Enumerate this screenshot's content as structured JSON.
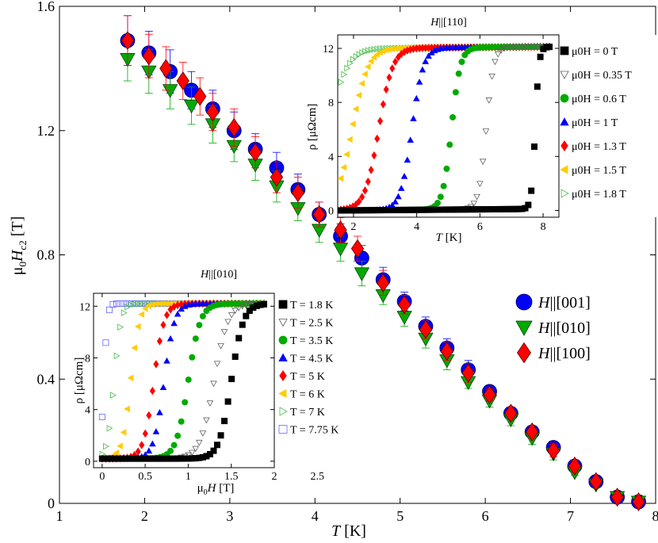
{
  "chart_data": [
    {
      "type": "scatter",
      "xlabel_var": "T",
      "xlabel_unit": "[K]",
      "ylabel_mu": "μ",
      "ylabel_mu_sub": "0",
      "ylabel_var": "H",
      "ylabel_var_sub": "c2",
      "ylabel_unit": "[T]",
      "xlim": [
        1,
        8
      ],
      "ylim": [
        0,
        1.6
      ],
      "xticks": [
        1,
        2,
        3,
        4,
        5,
        6,
        7,
        8
      ],
      "yticks": [
        0,
        0.4,
        0.8,
        1.2,
        1.6
      ],
      "ytick_labels": [
        "0",
        "0.4",
        "0.8",
        "1.2",
        "1.6"
      ],
      "legend_position": "right",
      "series": [
        {
          "name": "H||[001]",
          "marker": "circle",
          "color": "#0000ff",
          "x": [
            1.8,
            2.05,
            2.3,
            2.55,
            2.8,
            3.05,
            3.3,
            3.55,
            3.8,
            4.05,
            4.3,
            4.55,
            4.8,
            5.05,
            5.3,
            5.55,
            5.8,
            6.05,
            6.3,
            6.55,
            6.8,
            7.05,
            7.3,
            7.55,
            7.8
          ],
          "y": [
            1.49,
            1.45,
            1.39,
            1.33,
            1.27,
            1.2,
            1.14,
            1.08,
            1.01,
            0.93,
            0.86,
            0.79,
            0.72,
            0.65,
            0.57,
            0.5,
            0.43,
            0.36,
            0.29,
            0.23,
            0.18,
            0.12,
            0.07,
            0.02,
            0.005
          ],
          "err": [
            0.08,
            0.07,
            0.07,
            0.06,
            0.06,
            0.06,
            0.05,
            0.05,
            0.05,
            0.04,
            0.04,
            0.04,
            0.04,
            0.03,
            0.03,
            0.03,
            0.03,
            0.02,
            0.02,
            0.02,
            0.02,
            0.02,
            0.01,
            0.01,
            0.01
          ]
        },
        {
          "name": "H||[010]",
          "marker": "triangle-down",
          "color": "#00aa00",
          "x": [
            1.8,
            2.05,
            2.3,
            2.55,
            2.8,
            3.05,
            3.3,
            3.55,
            3.8,
            4.05,
            4.3,
            4.55,
            4.8,
            5.05,
            5.3,
            5.55,
            5.8,
            6.05,
            6.3,
            6.55,
            6.8,
            7.05,
            7.3,
            7.55,
            7.8
          ],
          "y": [
            1.43,
            1.39,
            1.33,
            1.28,
            1.22,
            1.15,
            1.09,
            1.02,
            0.95,
            0.88,
            0.82,
            0.74,
            0.67,
            0.6,
            0.53,
            0.46,
            0.39,
            0.33,
            0.27,
            0.21,
            0.16,
            0.1,
            0.06,
            0.02,
            0.005
          ],
          "err": [
            0.07,
            0.07,
            0.06,
            0.06,
            0.06,
            0.05,
            0.05,
            0.05,
            0.04,
            0.04,
            0.04,
            0.04,
            0.03,
            0.03,
            0.03,
            0.03,
            0.02,
            0.02,
            0.02,
            0.02,
            0.02,
            0.01,
            0.01,
            0.01,
            0.01
          ]
        },
        {
          "name": "H||[100]",
          "marker": "diamond",
          "color": "#ff0000",
          "x": [
            1.8,
            2.05,
            2.25,
            2.45,
            2.65,
            2.8,
            3.05,
            3.3,
            3.55,
            3.8,
            4.05,
            4.3,
            4.5,
            4.8,
            5.05,
            5.3,
            5.55,
            5.8,
            6.05,
            6.3,
            6.55,
            6.8,
            7.05,
            7.3,
            7.55,
            7.8
          ],
          "y": [
            1.49,
            1.44,
            1.4,
            1.36,
            1.31,
            1.26,
            1.21,
            1.13,
            1.05,
            1.0,
            0.93,
            0.88,
            0.82,
            0.71,
            0.64,
            0.56,
            0.49,
            0.42,
            0.35,
            0.29,
            0.23,
            0.17,
            0.12,
            0.07,
            0.02,
            0.005
          ],
          "err": [
            0.08,
            0.07,
            0.07,
            0.06,
            0.06,
            0.06,
            0.06,
            0.05,
            0.05,
            0.05,
            0.04,
            0.04,
            0.04,
            0.04,
            0.03,
            0.03,
            0.03,
            0.03,
            0.02,
            0.02,
            0.02,
            0.02,
            0.02,
            0.01,
            0.01,
            0.01
          ]
        }
      ]
    },
    {
      "type": "scatter",
      "title_var": "H",
      "title_rest": "||[110]",
      "xlabel_var": "T",
      "xlabel_unit": "[K]",
      "ylabel": "ρ [μΩcm]",
      "xlim": [
        1.5,
        8.5
      ],
      "ylim": [
        -0.5,
        13
      ],
      "xticks": [
        2,
        4,
        6,
        8
      ],
      "yticks": [
        0,
        4,
        8,
        12
      ],
      "legend_position": "right",
      "series": [
        {
          "name": "μ0H = 0 T",
          "marker": "square",
          "color": "#000000",
          "fill": true,
          "tc": 7.75,
          "w": 0.06
        },
        {
          "name": "μ0H = 0.35 T",
          "marker": "triangle-down",
          "color": "#606060",
          "fill": false,
          "tc": 6.2,
          "w": 0.12
        },
        {
          "name": "μ0H = 0.6 T",
          "marker": "circle",
          "color": "#00aa00",
          "fill": true,
          "tc": 5.1,
          "w": 0.14
        },
        {
          "name": "μ0H = 1 T",
          "marker": "triangle-up",
          "color": "#0000ff",
          "fill": true,
          "tc": 3.85,
          "w": 0.18
        },
        {
          "name": "μ0H = 1.3 T",
          "marker": "diamond",
          "color": "#ff0000",
          "fill": true,
          "tc": 2.8,
          "w": 0.22
        },
        {
          "name": "μ0H = 1.5 T",
          "marker": "triangle-left",
          "color": "#ffcc00",
          "fill": true,
          "tc": 1.95,
          "w": 0.25
        },
        {
          "name": "μ0H = 1.8 T",
          "marker": "triangle-right",
          "color": "#44bb44",
          "fill": false,
          "tc": 1.2,
          "w": 0.3
        }
      ]
    },
    {
      "type": "scatter",
      "title_var": "H",
      "title_rest": "||[010]",
      "xlabel_mu": "μ",
      "xlabel_mu_sub": "0",
      "xlabel_var": "H",
      "xlabel_unit": "[T]",
      "ylabel": "ρ [μΩcm]",
      "xlim": [
        -0.1,
        2.0
      ],
      "ylim": [
        -0.5,
        13
      ],
      "xticks": [
        0,
        0.5,
        1,
        1.5,
        2,
        2.5
      ],
      "xtick_labels": [
        "0",
        "0.5",
        "1",
        "1.5",
        "2",
        "2.5"
      ],
      "yticks": [
        0,
        4,
        8,
        12
      ],
      "legend_position": "right",
      "series": [
        {
          "name": "T = 1.8 K",
          "marker": "square",
          "color": "#000000",
          "fill": true,
          "hc": 1.5,
          "w": 0.07
        },
        {
          "name": "T = 2.5 K",
          "marker": "triangle-down",
          "color": "#606060",
          "fill": false,
          "hc": 1.3,
          "w": 0.08
        },
        {
          "name": "T = 3.5 K",
          "marker": "circle",
          "color": "#00aa00",
          "fill": true,
          "hc": 1.0,
          "w": 0.07
        },
        {
          "name": "T = 4.5 K",
          "marker": "triangle-up",
          "color": "#0000ff",
          "fill": true,
          "hc": 0.72,
          "w": 0.06
        },
        {
          "name": "T = 5 K",
          "marker": "diamond",
          "color": "#ff0000",
          "fill": true,
          "hc": 0.6,
          "w": 0.06
        },
        {
          "name": "T = 6 K",
          "marker": "triangle-left",
          "color": "#ffcc00",
          "fill": true,
          "hc": 0.33,
          "w": 0.05
        },
        {
          "name": "T = 7 K",
          "marker": "triangle-right",
          "color": "#44bb44",
          "fill": false,
          "hc": 0.14,
          "w": 0.04
        },
        {
          "name": "T = 7.75 K",
          "marker": "square",
          "color": "#6666ff",
          "fill": false,
          "hc": 0.02,
          "w": 0.02
        }
      ]
    }
  ]
}
